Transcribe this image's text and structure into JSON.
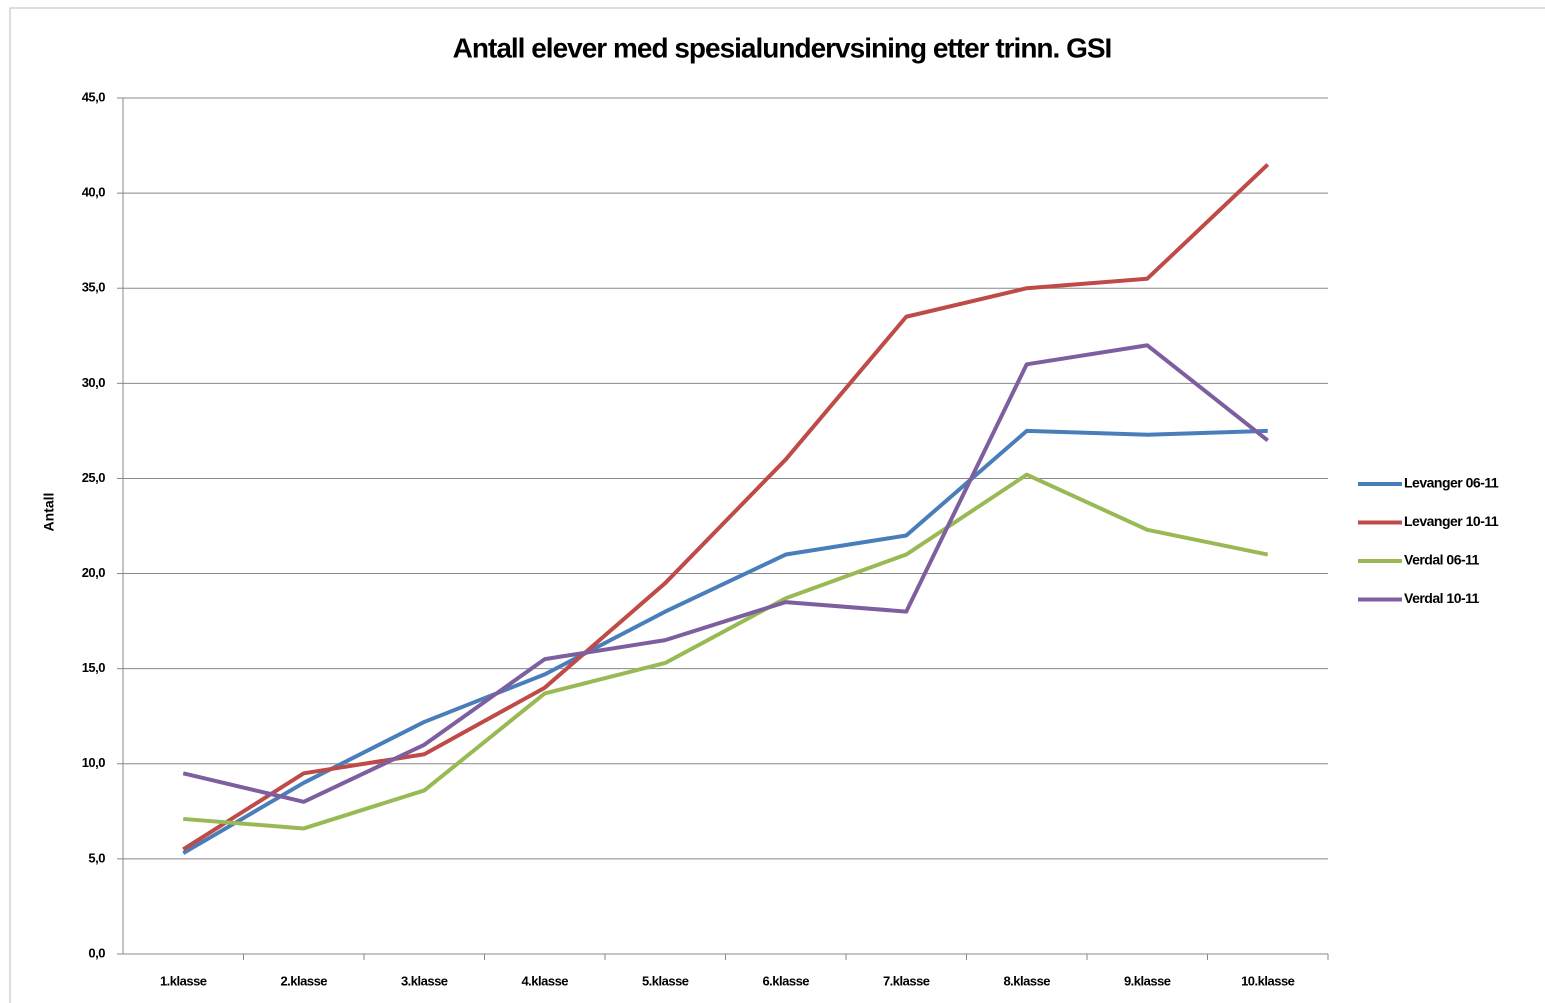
{
  "chart_data": {
    "type": "line",
    "title": "Antall elever med spesialundervsining etter trinn. GSI",
    "y_label": "Antall",
    "categories": [
      "1.klasse",
      "2.klasse",
      "3.klasse",
      "4.klasse",
      "5.klasse",
      "6.klasse",
      "7.klasse",
      "8.klasse",
      "9.klasse",
      "10.klasse"
    ],
    "series": [
      {
        "name": "Levanger 06-11",
        "color": "#4a7ebb",
        "values": [
          5.3,
          9.0,
          12.2,
          14.7,
          18.0,
          21.0,
          22.0,
          27.5,
          27.3,
          27.5
        ]
      },
      {
        "name": "Levanger 10-11",
        "color": "#be4b48",
        "values": [
          5.5,
          9.5,
          10.5,
          14.0,
          19.5,
          26.0,
          33.5,
          35.0,
          35.5,
          41.5
        ]
      },
      {
        "name": "Verdal 06-11",
        "color": "#98b954",
        "values": [
          7.1,
          6.6,
          8.6,
          13.7,
          15.3,
          18.7,
          21.0,
          25.2,
          22.3,
          21.0
        ]
      },
      {
        "name": "Verdal 10-11",
        "color": "#7d5fa0",
        "values": [
          9.5,
          8.0,
          11.0,
          15.5,
          16.5,
          18.5,
          18.0,
          31.0,
          32.0,
          27.0
        ]
      }
    ],
    "ylim": [
      0,
      45
    ],
    "yticks": [
      {
        "value": 0,
        "label": "0,0"
      },
      {
        "value": 5,
        "label": "5,0"
      },
      {
        "value": 10,
        "label": "10,0"
      },
      {
        "value": 15,
        "label": "15,0"
      },
      {
        "value": 20,
        "label": "20,0"
      },
      {
        "value": 25,
        "label": "25,0"
      },
      {
        "value": 30,
        "label": "30,0"
      },
      {
        "value": 35,
        "label": "35,0"
      },
      {
        "value": 40,
        "label": "40,0"
      },
      {
        "value": 45,
        "label": "45,0"
      }
    ],
    "grid": true,
    "legend": "right"
  }
}
